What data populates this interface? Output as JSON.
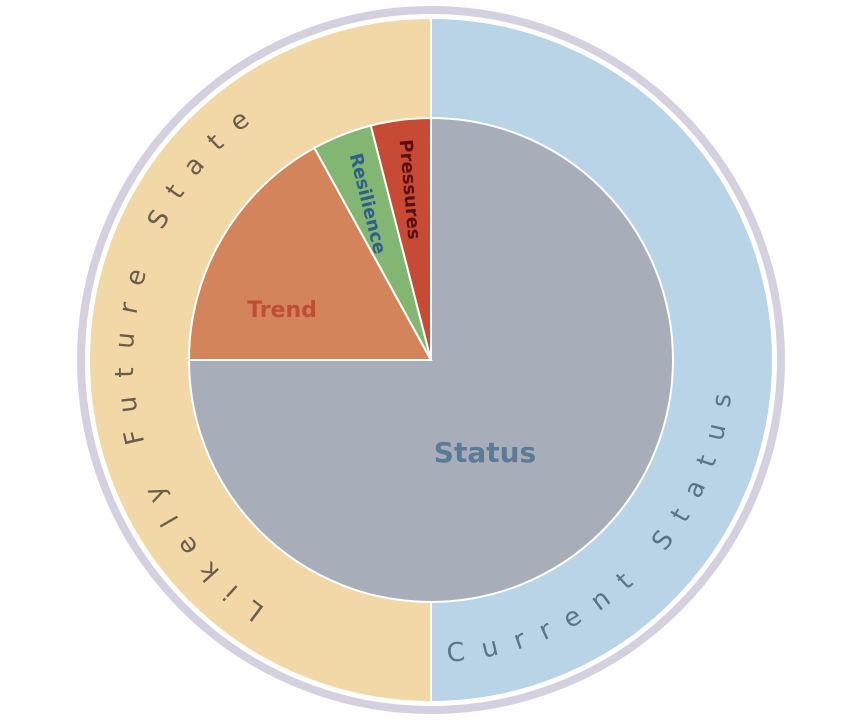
{
  "diagram": {
    "outer_ring": [
      {
        "id": "future",
        "label": "Likely Future State",
        "fill": "#f2d7a7",
        "text_color": "#6b5d4b"
      },
      {
        "id": "current",
        "label": "Current Status",
        "fill": "#b9d4e6",
        "text_color": "#5a7487"
      }
    ],
    "inner_pie": [
      {
        "id": "status",
        "label": "Status",
        "share": 0.75,
        "fill": "#a7aeba",
        "text_color": "#5b7a96"
      },
      {
        "id": "trend",
        "label": "Trend",
        "share": 0.17,
        "fill": "#d4845a",
        "text_color": "#c04e36"
      },
      {
        "id": "resilience",
        "label": "Resilience",
        "share": 0.04,
        "fill": "#82b672",
        "text_color": "#2f5f8a"
      },
      {
        "id": "pressures",
        "label": "Pressures",
        "share": 0.04,
        "fill": "#c64a34",
        "text_color": "#5a0f12"
      }
    ],
    "frame_color": "#d5d0df"
  }
}
